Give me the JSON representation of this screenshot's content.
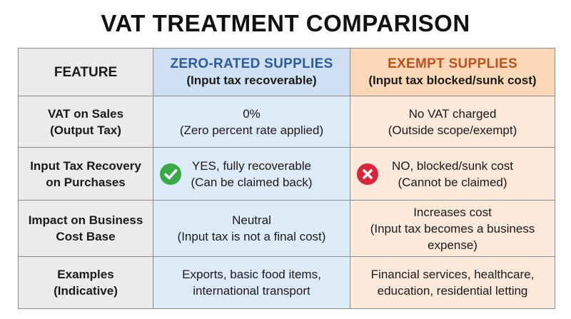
{
  "title": "VAT TREATMENT COMPARISON",
  "colors": {
    "zero_rated_heading": "#2c5aa0",
    "exempt_heading": "#c0501a",
    "zero_rated_fill": "#ddeaf7",
    "exempt_fill": "#fce9d9",
    "feature_fill": "#ebebeb",
    "check_icon": "#3aaa47",
    "cross_icon": "#d9263a"
  },
  "header": {
    "feature": "FEATURE",
    "zero_rated": {
      "title": "ZERO-RATED SUPPLIES",
      "subtitle": "(Input tax recoverable)"
    },
    "exempt": {
      "title": "EXEMPT SUPPLIES",
      "subtitle": "(Input tax blocked/sunk cost)"
    }
  },
  "rows": [
    {
      "feature": [
        "VAT on Sales",
        "(Output Tax)"
      ],
      "zero_rated": [
        "0%",
        "(Zero percent rate applied)"
      ],
      "exempt": [
        "No VAT charged",
        "(Outside scope/exempt)"
      ]
    },
    {
      "feature": [
        "Input Tax Recovery",
        "on Purchases"
      ],
      "zero_rated": [
        "YES, fully recoverable",
        "(Can be claimed back)"
      ],
      "zero_rated_icon": "check-circle-icon",
      "exempt": [
        "NO, blocked/sunk cost",
        "(Cannot be claimed)"
      ],
      "exempt_icon": "cross-circle-icon"
    },
    {
      "feature": [
        "Impact on Business",
        "Cost Base"
      ],
      "zero_rated": [
        "Neutral",
        "(Input tax is not a final cost)"
      ],
      "exempt": [
        "Increases cost",
        "(Input tax becomes a business",
        "expense)"
      ]
    },
    {
      "feature": [
        "Examples",
        "(Indicative)"
      ],
      "zero_rated": [
        "Exports, basic food items,",
        "international transport"
      ],
      "exempt": [
        "Financial services, healthcare,",
        "education, residential letting"
      ]
    }
  ]
}
